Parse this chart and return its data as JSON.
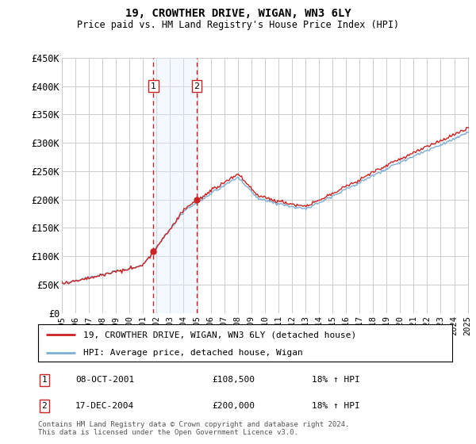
{
  "title": "19, CROWTHER DRIVE, WIGAN, WN3 6LY",
  "subtitle": "Price paid vs. HM Land Registry's House Price Index (HPI)",
  "ylim": [
    0,
    450000
  ],
  "yticks": [
    0,
    50000,
    100000,
    150000,
    200000,
    250000,
    300000,
    350000,
    400000,
    450000
  ],
  "ytick_labels": [
    "£0",
    "£50K",
    "£100K",
    "£150K",
    "£200K",
    "£250K",
    "£300K",
    "£350K",
    "£400K",
    "£450K"
  ],
  "t1_year": 2001.77,
  "t2_year": 2004.96,
  "t1_price": 108500,
  "t2_price": 200000,
  "legend_line1": "19, CROWTHER DRIVE, WIGAN, WN3 6LY (detached house)",
  "legend_line2": "HPI: Average price, detached house, Wigan",
  "row1_date": "08-OCT-2001",
  "row1_price": "£108,500",
  "row1_hpi": "18% ↑ HPI",
  "row2_date": "17-DEC-2004",
  "row2_price": "£200,000",
  "row2_hpi": "18% ↑ HPI",
  "footer": "Contains HM Land Registry data © Crown copyright and database right 2024.\nThis data is licensed under the Open Government Licence v3.0.",
  "hpi_color": "#7bafd4",
  "price_color": "#cc2222",
  "marker_color": "#cc2222",
  "shading_color": "#ddeeff",
  "vline_color": "#cc2222",
  "background_color": "#ffffff",
  "grid_color": "#cccccc"
}
